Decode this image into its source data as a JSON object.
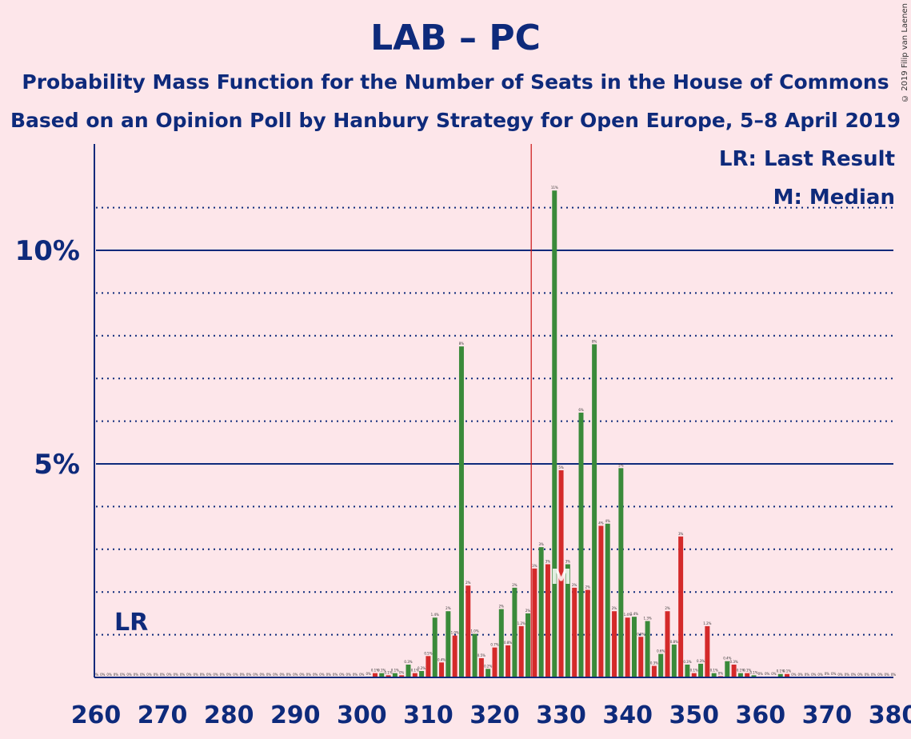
{
  "title": "LAB – PC",
  "subtitle1": "Probability Mass Function for the Number of Seats in the House of Commons",
  "subtitle2": "Based on an Opinion Poll by Hanbury Strategy for Open Europe, 5–8 April 2019",
  "copyright": "© 2019 Filip van Laenen",
  "legend": {
    "lr": "LR: Last Result",
    "m": "M: Median"
  },
  "chart_data": {
    "type": "bar",
    "xlim": [
      260,
      380
    ],
    "ylim": [
      0,
      12.5
    ],
    "y_ticks": [
      {
        "value": 5,
        "label": "5%"
      },
      {
        "value": 10,
        "label": "10%"
      }
    ],
    "x_ticks": [
      260,
      270,
      280,
      290,
      300,
      310,
      320,
      330,
      340,
      350,
      360,
      370,
      380
    ],
    "majority_line": 326,
    "last_result": {
      "seat": 267,
      "label": "LR"
    },
    "median": {
      "seat": 330,
      "label": "M"
    },
    "colors": {
      "odd": "#3A8A3A",
      "even": "#D42A2A",
      "majority": "#CC1111",
      "axis": "#0E2A7B"
    },
    "bars": [
      {
        "seat": 260,
        "value": 0,
        "label": "0%"
      },
      {
        "seat": 261,
        "value": 0,
        "label": "0%"
      },
      {
        "seat": 262,
        "value": 0,
        "label": "0%"
      },
      {
        "seat": 263,
        "value": 0,
        "label": "0%"
      },
      {
        "seat": 264,
        "value": 0,
        "label": "0%"
      },
      {
        "seat": 265,
        "value": 0,
        "label": "0%"
      },
      {
        "seat": 266,
        "value": 0,
        "label": "0%"
      },
      {
        "seat": 267,
        "value": 0,
        "label": "0%"
      },
      {
        "seat": 268,
        "value": 0,
        "label": "0%"
      },
      {
        "seat": 269,
        "value": 0,
        "label": "0%"
      },
      {
        "seat": 270,
        "value": 0,
        "label": "0%"
      },
      {
        "seat": 271,
        "value": 0,
        "label": "0%"
      },
      {
        "seat": 272,
        "value": 0,
        "label": "0%"
      },
      {
        "seat": 273,
        "value": 0,
        "label": "0%"
      },
      {
        "seat": 274,
        "value": 0,
        "label": "0%"
      },
      {
        "seat": 275,
        "value": 0,
        "label": "0%"
      },
      {
        "seat": 276,
        "value": 0,
        "label": "0%"
      },
      {
        "seat": 277,
        "value": 0,
        "label": "0%"
      },
      {
        "seat": 278,
        "value": 0,
        "label": "0%"
      },
      {
        "seat": 279,
        "value": 0,
        "label": "0%"
      },
      {
        "seat": 280,
        "value": 0,
        "label": "0%"
      },
      {
        "seat": 281,
        "value": 0,
        "label": "0%"
      },
      {
        "seat": 282,
        "value": 0,
        "label": "0%"
      },
      {
        "seat": 283,
        "value": 0,
        "label": "0%"
      },
      {
        "seat": 284,
        "value": 0,
        "label": "0%"
      },
      {
        "seat": 285,
        "value": 0,
        "label": "0%"
      },
      {
        "seat": 286,
        "value": 0,
        "label": "0%"
      },
      {
        "seat": 287,
        "value": 0,
        "label": "0%"
      },
      {
        "seat": 288,
        "value": 0,
        "label": "0%"
      },
      {
        "seat": 289,
        "value": 0,
        "label": "0%"
      },
      {
        "seat": 290,
        "value": 0,
        "label": "0%"
      },
      {
        "seat": 291,
        "value": 0,
        "label": "0%"
      },
      {
        "seat": 292,
        "value": 0,
        "label": "0%"
      },
      {
        "seat": 293,
        "value": 0,
        "label": "0%"
      },
      {
        "seat": 294,
        "value": 0,
        "label": "0%"
      },
      {
        "seat": 295,
        "value": 0,
        "label": "0%"
      },
      {
        "seat": 296,
        "value": 0,
        "label": "0%"
      },
      {
        "seat": 297,
        "value": 0,
        "label": "0%"
      },
      {
        "seat": 298,
        "value": 0,
        "label": "0%"
      },
      {
        "seat": 299,
        "value": 0,
        "label": "0%"
      },
      {
        "seat": 300,
        "value": 0,
        "label": "0%"
      },
      {
        "seat": 301,
        "value": 0.02,
        "label": "0%"
      },
      {
        "seat": 302,
        "value": 0.1,
        "label": "0.1%"
      },
      {
        "seat": 303,
        "value": 0.1,
        "label": "0.1%"
      },
      {
        "seat": 304,
        "value": 0.05,
        "label": "0.1%"
      },
      {
        "seat": 305,
        "value": 0.1,
        "label": "0.1%"
      },
      {
        "seat": 306,
        "value": 0.05,
        "label": "0%"
      },
      {
        "seat": 307,
        "value": 0.3,
        "label": "0.3%"
      },
      {
        "seat": 308,
        "value": 0.1,
        "label": "0.1%"
      },
      {
        "seat": 309,
        "value": 0.15,
        "label": "0.2%"
      },
      {
        "seat": 310,
        "value": 0.5,
        "label": "0.5%"
      },
      {
        "seat": 311,
        "value": 1.4,
        "label": "1.4%"
      },
      {
        "seat": 312,
        "value": 0.35,
        "label": "0.4%"
      },
      {
        "seat": 313,
        "value": 1.55,
        "label": "2%"
      },
      {
        "seat": 314,
        "value": 0.98,
        "label": "1.0%"
      },
      {
        "seat": 315,
        "value": 7.75,
        "label": "8%"
      },
      {
        "seat": 316,
        "value": 2.15,
        "label": "2%"
      },
      {
        "seat": 317,
        "value": 1.02,
        "label": "1.0%"
      },
      {
        "seat": 318,
        "value": 0.45,
        "label": "0.5%"
      },
      {
        "seat": 319,
        "value": 0.2,
        "label": "0.2%"
      },
      {
        "seat": 320,
        "value": 0.7,
        "label": "0.7%"
      },
      {
        "seat": 321,
        "value": 1.6,
        "label": "2%"
      },
      {
        "seat": 322,
        "value": 0.75,
        "label": "0.8%"
      },
      {
        "seat": 323,
        "value": 2.1,
        "label": "2%"
      },
      {
        "seat": 324,
        "value": 1.2,
        "label": "1.2%"
      },
      {
        "seat": 325,
        "value": 1.5,
        "label": "2%"
      },
      {
        "seat": 326,
        "value": 2.55,
        "label": "3%"
      },
      {
        "seat": 327,
        "value": 3.05,
        "label": "3%"
      },
      {
        "seat": 328,
        "value": 2.65,
        "label": "3%"
      },
      {
        "seat": 329,
        "value": 11.4,
        "label": "11%"
      },
      {
        "seat": 330,
        "value": 4.85,
        "label": "5%"
      },
      {
        "seat": 331,
        "value": 2.65,
        "label": "3%"
      },
      {
        "seat": 332,
        "value": 2.1,
        "label": "2%"
      },
      {
        "seat": 333,
        "value": 6.2,
        "label": "6%"
      },
      {
        "seat": 334,
        "value": 2.05,
        "label": "2%"
      },
      {
        "seat": 335,
        "value": 7.8,
        "label": "8%"
      },
      {
        "seat": 336,
        "value": 3.55,
        "label": "4%"
      },
      {
        "seat": 337,
        "value": 3.6,
        "label": "4%"
      },
      {
        "seat": 338,
        "value": 1.55,
        "label": "2%"
      },
      {
        "seat": 339,
        "value": 4.9,
        "label": "5%"
      },
      {
        "seat": 340,
        "value": 1.4,
        "label": "1.4%"
      },
      {
        "seat": 341,
        "value": 1.42,
        "label": "1.4%"
      },
      {
        "seat": 342,
        "value": 0.95,
        "label": "0.9%"
      },
      {
        "seat": 343,
        "value": 1.32,
        "label": "1.3%"
      },
      {
        "seat": 344,
        "value": 0.27,
        "label": "0.3%"
      },
      {
        "seat": 345,
        "value": 0.55,
        "label": "0.6%"
      },
      {
        "seat": 346,
        "value": 1.55,
        "label": "2%"
      },
      {
        "seat": 347,
        "value": 0.77,
        "label": "0.8%"
      },
      {
        "seat": 348,
        "value": 3.3,
        "label": "3%"
      },
      {
        "seat": 349,
        "value": 0.3,
        "label": "0.3%"
      },
      {
        "seat": 350,
        "value": 0.1,
        "label": "0.1%"
      },
      {
        "seat": 351,
        "value": 0.32,
        "label": "0.3%"
      },
      {
        "seat": 352,
        "value": 1.2,
        "label": "1.2%"
      },
      {
        "seat": 353,
        "value": 0.1,
        "label": "0.1%"
      },
      {
        "seat": 354,
        "value": 0.03,
        "label": "0%"
      },
      {
        "seat": 355,
        "value": 0.38,
        "label": "0.4%"
      },
      {
        "seat": 356,
        "value": 0.3,
        "label": "0.3%"
      },
      {
        "seat": 357,
        "value": 0.1,
        "label": "0.1%"
      },
      {
        "seat": 358,
        "value": 0.1,
        "label": "0.1%"
      },
      {
        "seat": 359,
        "value": 0.05,
        "label": "0.1%"
      },
      {
        "seat": 360,
        "value": 0.02,
        "label": "0%"
      },
      {
        "seat": 361,
        "value": 0.02,
        "label": "0%"
      },
      {
        "seat": 362,
        "value": 0.02,
        "label": "0%"
      },
      {
        "seat": 363,
        "value": 0.08,
        "label": "0.1%"
      },
      {
        "seat": 364,
        "value": 0.08,
        "label": "0.1%"
      },
      {
        "seat": 365,
        "value": 0,
        "label": "0%"
      },
      {
        "seat": 366,
        "value": 0,
        "label": "0%"
      },
      {
        "seat": 367,
        "value": 0,
        "label": "0%"
      },
      {
        "seat": 368,
        "value": 0,
        "label": "0%"
      },
      {
        "seat": 369,
        "value": 0,
        "label": "0%"
      },
      {
        "seat": 370,
        "value": 0.02,
        "label": "0%"
      },
      {
        "seat": 371,
        "value": 0.02,
        "label": "0%"
      },
      {
        "seat": 372,
        "value": 0,
        "label": "0%"
      },
      {
        "seat": 373,
        "value": 0,
        "label": "0%"
      },
      {
        "seat": 374,
        "value": 0,
        "label": "0%"
      },
      {
        "seat": 375,
        "value": 0,
        "label": "0%"
      },
      {
        "seat": 376,
        "value": 0,
        "label": "0%"
      },
      {
        "seat": 377,
        "value": 0,
        "label": "0%"
      },
      {
        "seat": 378,
        "value": 0,
        "label": "0%"
      },
      {
        "seat": 379,
        "value": 0,
        "label": "0%"
      },
      {
        "seat": 380,
        "value": 0,
        "label": "0%"
      }
    ]
  }
}
